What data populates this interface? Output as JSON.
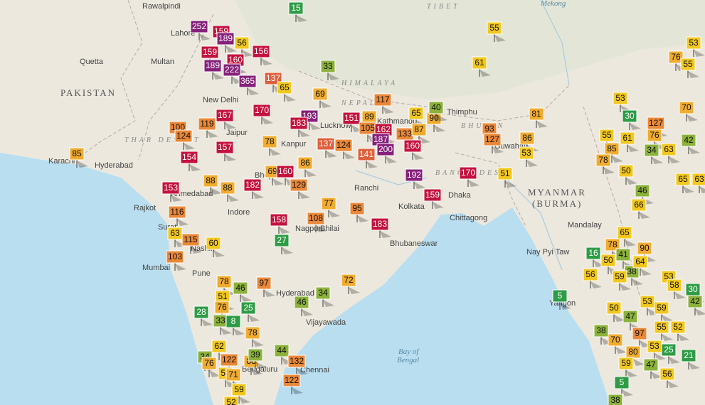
{
  "places": [
    "Rawalpindi",
    "TIBET",
    "Mekong",
    "Lahore",
    "Multan",
    "Quetta",
    "PAKISTAN",
    "THAR DESERT",
    "New Delhi",
    "Jaipur",
    "Kanpur",
    "Lucknow",
    "Karachi",
    "Hyderabad",
    "Ahmedabad",
    "Bhopal",
    "Indore",
    "Rajkot",
    "Surat",
    "Nashik",
    "Mumbai",
    "Pune",
    "Nagpur",
    "Bhilai",
    "Ranchi",
    "Kolkata",
    "Dhaka",
    "Chittagong",
    "Bhubaneswar",
    "Thimphu",
    "NEPAL",
    "BHUTAN",
    "Guwahati",
    "BANGLADESH",
    "MYANMAR",
    "(BURMA)",
    "Mandalay",
    "Nay Pyi Taw",
    "Yangon",
    "Hyderabad",
    "Vijayawada",
    "Bay of",
    "Bengal",
    "Bengaluru",
    "Chennai",
    "HIMALAYA",
    "Kathmandu"
  ],
  "markers": [
    15,
    55,
    252,
    159,
    189,
    56,
    156,
    159,
    160,
    189,
    222,
    365,
    137,
    65,
    33,
    69,
    117,
    61,
    65,
    90,
    40,
    167,
    170,
    193,
    183,
    151,
    89,
    105,
    162,
    133,
    87,
    187,
    200,
    160,
    141,
    81,
    93,
    127,
    86,
    53,
    100,
    124,
    119,
    78,
    137,
    124,
    86,
    157,
    154,
    69,
    160,
    129,
    192,
    170,
    51,
    85,
    88,
    88,
    153,
    182,
    77,
    95,
    108,
    158,
    183,
    159,
    116,
    63,
    115,
    60,
    27,
    103,
    78,
    97,
    46,
    72,
    51,
    76,
    25,
    28,
    33,
    8,
    46,
    34,
    78,
    62,
    34,
    76,
    122,
    88,
    39,
    44,
    132,
    122,
    50,
    71,
    59,
    52,
    5,
    53,
    30,
    127,
    70,
    55,
    85,
    61,
    76,
    42,
    78,
    34,
    63,
    50,
    65,
    63,
    46,
    66,
    76,
    53,
    55,
    65,
    78,
    90,
    41,
    16,
    50,
    38,
    64,
    56,
    53,
    58,
    59,
    30,
    42,
    53,
    59,
    50,
    47,
    38,
    97,
    55,
    52,
    70,
    80,
    53,
    25,
    21,
    59,
    47,
    56,
    5,
    38
  ]
}
